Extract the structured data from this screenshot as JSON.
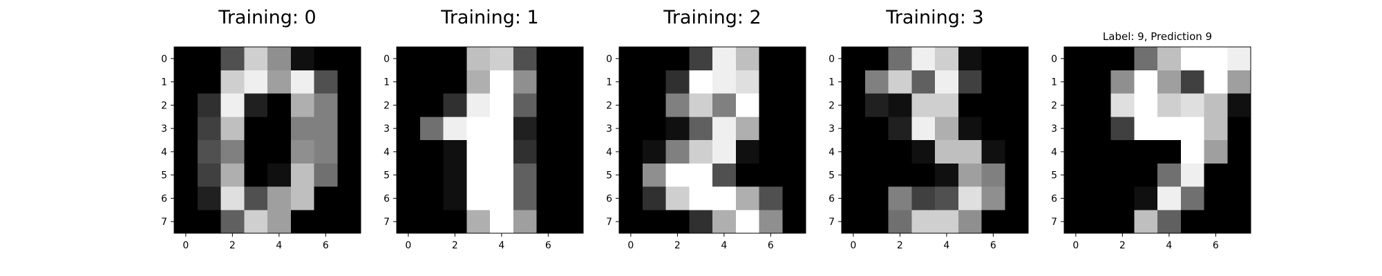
{
  "figure": {
    "background_color": "#ffffff",
    "colormap": "gray",
    "interpolation": "nearest"
  },
  "chart_data": [
    {
      "type": "heatmap",
      "title": "Training: 0",
      "xlabel": "",
      "ylabel": "",
      "x_ticks": [
        "0",
        "2",
        "4",
        "6"
      ],
      "y_ticks": [
        "0",
        "1",
        "2",
        "3",
        "4",
        "5",
        "6",
        "7"
      ],
      "value_range": [
        0,
        16
      ],
      "grid": false,
      "values": [
        [
          0,
          0,
          5,
          13,
          9,
          1,
          0,
          0
        ],
        [
          0,
          0,
          13,
          15,
          10,
          15,
          5,
          0
        ],
        [
          0,
          3,
          15,
          2,
          0,
          11,
          8,
          0
        ],
        [
          0,
          4,
          12,
          0,
          0,
          8,
          8,
          0
        ],
        [
          0,
          5,
          8,
          0,
          0,
          9,
          8,
          0
        ],
        [
          0,
          4,
          11,
          0,
          1,
          12,
          7,
          0
        ],
        [
          0,
          2,
          14,
          5,
          10,
          12,
          0,
          0
        ],
        [
          0,
          0,
          6,
          13,
          10,
          0,
          0,
          0
        ]
      ]
    },
    {
      "type": "heatmap",
      "title": "Training: 1",
      "xlabel": "",
      "ylabel": "",
      "x_ticks": [
        "0",
        "2",
        "4",
        "6"
      ],
      "y_ticks": [
        "0",
        "1",
        "2",
        "3",
        "4",
        "5",
        "6",
        "7"
      ],
      "value_range": [
        0,
        16
      ],
      "grid": false,
      "values": [
        [
          0,
          0,
          0,
          12,
          13,
          5,
          0,
          0
        ],
        [
          0,
          0,
          0,
          11,
          16,
          9,
          0,
          0
        ],
        [
          0,
          0,
          3,
          15,
          16,
          6,
          0,
          0
        ],
        [
          0,
          7,
          15,
          16,
          16,
          2,
          0,
          0
        ],
        [
          0,
          0,
          1,
          16,
          16,
          3,
          0,
          0
        ],
        [
          0,
          0,
          1,
          16,
          16,
          6,
          0,
          0
        ],
        [
          0,
          0,
          1,
          16,
          16,
          6,
          0,
          0
        ],
        [
          0,
          0,
          0,
          11,
          16,
          10,
          0,
          0
        ]
      ]
    },
    {
      "type": "heatmap",
      "title": "Training: 2",
      "xlabel": "",
      "ylabel": "",
      "x_ticks": [
        "0",
        "2",
        "4",
        "6"
      ],
      "y_ticks": [
        "0",
        "1",
        "2",
        "3",
        "4",
        "5",
        "6",
        "7"
      ],
      "value_range": [
        0,
        16
      ],
      "grid": false,
      "values": [
        [
          0,
          0,
          0,
          4,
          15,
          12,
          0,
          0
        ],
        [
          0,
          0,
          3,
          16,
          15,
          14,
          0,
          0
        ],
        [
          0,
          0,
          8,
          13,
          8,
          16,
          0,
          0
        ],
        [
          0,
          0,
          1,
          6,
          15,
          11,
          0,
          0
        ],
        [
          0,
          1,
          8,
          13,
          15,
          1,
          0,
          0
        ],
        [
          0,
          9,
          16,
          16,
          5,
          0,
          0,
          0
        ],
        [
          0,
          3,
          13,
          16,
          16,
          11,
          5,
          0
        ],
        [
          0,
          0,
          0,
          3,
          11,
          16,
          9,
          0
        ]
      ]
    },
    {
      "type": "heatmap",
      "title": "Training: 3",
      "xlabel": "",
      "ylabel": "",
      "x_ticks": [
        "0",
        "2",
        "4",
        "6"
      ],
      "y_ticks": [
        "0",
        "1",
        "2",
        "3",
        "4",
        "5",
        "6",
        "7"
      ],
      "value_range": [
        0,
        16
      ],
      "grid": false,
      "values": [
        [
          0,
          0,
          7,
          15,
          13,
          1,
          0,
          0
        ],
        [
          0,
          8,
          13,
          6,
          15,
          4,
          0,
          0
        ],
        [
          0,
          2,
          1,
          13,
          13,
          0,
          0,
          0
        ],
        [
          0,
          0,
          2,
          15,
          11,
          1,
          0,
          0
        ],
        [
          0,
          0,
          0,
          1,
          12,
          12,
          1,
          0
        ],
        [
          0,
          0,
          0,
          0,
          1,
          10,
          8,
          0
        ],
        [
          0,
          0,
          8,
          4,
          5,
          14,
          9,
          0
        ],
        [
          0,
          0,
          7,
          13,
          13,
          9,
          0,
          0
        ]
      ]
    },
    {
      "type": "heatmap",
      "title": "Label: 9, Prediction 9",
      "xlabel": "",
      "ylabel": "",
      "x_ticks": [
        "0",
        "2",
        "4",
        "6"
      ],
      "y_ticks": [
        "0",
        "1",
        "2",
        "3",
        "4",
        "5",
        "6",
        "7"
      ],
      "value_range": [
        0,
        16
      ],
      "grid": false,
      "values": [
        [
          0,
          0,
          0,
          7,
          12,
          16,
          16,
          15
        ],
        [
          0,
          0,
          9,
          16,
          10,
          4,
          16,
          10
        ],
        [
          0,
          0,
          14,
          16,
          13,
          14,
          12,
          1
        ],
        [
          0,
          0,
          4,
          16,
          16,
          16,
          12,
          0
        ],
        [
          0,
          0,
          0,
          0,
          0,
          16,
          10,
          0
        ],
        [
          0,
          0,
          0,
          0,
          7,
          15,
          0,
          0
        ],
        [
          0,
          0,
          0,
          1,
          15,
          7,
          0,
          0
        ],
        [
          0,
          0,
          0,
          12,
          6,
          0,
          0,
          0
        ]
      ]
    }
  ]
}
